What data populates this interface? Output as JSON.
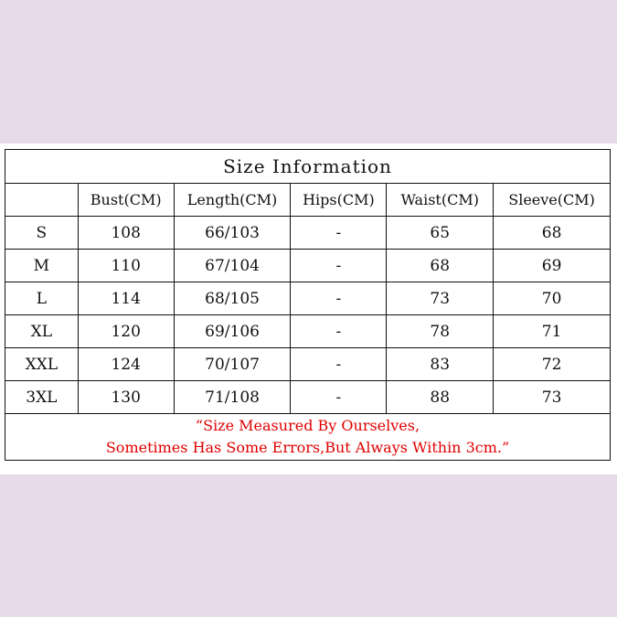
{
  "title": "Size Information",
  "headers": [
    "",
    "Bust(CM)",
    "Length(CM)",
    "Hips(CM)",
    "Waist(CM)",
    "Sleeve(CM)"
  ],
  "rows": [
    [
      "S",
      "108",
      "66/103",
      "-",
      "65",
      "68"
    ],
    [
      "M",
      "110",
      "67/104",
      "-",
      "68",
      "69"
    ],
    [
      "L",
      "114",
      "68/105",
      "-",
      "73",
      "70"
    ],
    [
      "XL",
      "120",
      "69/106",
      "-",
      "78",
      "71"
    ],
    [
      "XXL",
      "124",
      "70/107",
      "-",
      "83",
      "72"
    ],
    [
      "3XL",
      "130",
      "71/108",
      "-",
      "88",
      "73"
    ]
  ],
  "note": {
    "line1": "“Size Measured By Ourselves,",
    "line2": "Sometimes Has Some Errors,But Always Within 3cm.”"
  },
  "colors": {
    "background": "#e7dbea",
    "note": "#e00000"
  }
}
